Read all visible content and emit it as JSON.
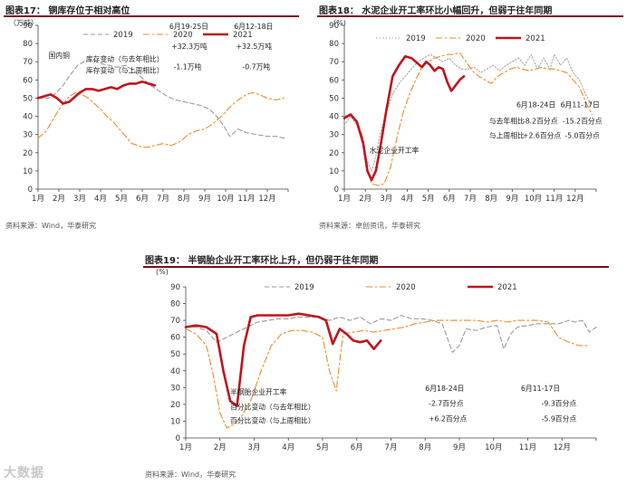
{
  "watermark": "大数据",
  "chart_data": [
    {
      "type": "line",
      "title": "图表17： 铜库存位于相对高位",
      "source": "资料来源：Wind，华泰研究",
      "ylabel": "（万吨）",
      "ylim": [
        0,
        90
      ],
      "yticks": [
        0,
        10,
        20,
        30,
        40,
        50,
        60,
        70,
        80,
        90
      ],
      "xlim": [
        1,
        13
      ],
      "xticks": [
        "1月",
        "2月",
        "3月",
        "4月",
        "5月",
        "6月",
        "7月",
        "8月",
        "9月",
        "10月",
        "11月",
        "12月"
      ],
      "legend": [
        "2019",
        "2020",
        "2021"
      ],
      "series": [
        {
          "name": "2019",
          "style": "dash",
          "color": "#9a9a9a",
          "x": [
            1.0,
            1.5,
            1.8,
            2.2,
            2.5,
            2.9,
            3.2,
            3.6,
            4.0,
            4.4,
            4.8,
            5.2,
            5.6,
            6.0,
            6.4,
            6.8,
            7.2,
            7.6,
            8.0,
            8.4,
            8.8,
            9.2,
            9.5,
            9.9,
            10.2,
            10.6,
            11.0,
            11.5,
            12.0,
            12.4,
            12.8
          ],
          "y": [
            50,
            50,
            52,
            57,
            62,
            68,
            70,
            71,
            69,
            68,
            67,
            68,
            65,
            61,
            57,
            54,
            51,
            49,
            48,
            47,
            46,
            44,
            41,
            35,
            29,
            33,
            31,
            30,
            29,
            29,
            28
          ]
        },
        {
          "name": "2020",
          "style": "dashdot",
          "color": "#f08a2a",
          "x": [
            1.0,
            1.4,
            1.8,
            2.2,
            2.5,
            2.8,
            3.1,
            3.4,
            3.7,
            4.0,
            4.3,
            4.6,
            4.9,
            5.2,
            5.5,
            5.8,
            6.0,
            6.3,
            6.6,
            7.0,
            7.4,
            7.8,
            8.2,
            8.6,
            9.0,
            9.4,
            9.8,
            10.2,
            10.6,
            11.0,
            11.3,
            11.6,
            12.0,
            12.4,
            12.8
          ],
          "y": [
            28,
            32,
            40,
            47,
            51,
            53,
            52,
            50,
            47,
            44,
            40,
            37,
            33,
            29,
            25,
            24,
            23,
            23,
            24,
            25,
            24,
            26,
            30,
            32,
            33,
            36,
            40,
            45,
            49,
            52,
            53,
            52,
            50,
            49,
            50
          ]
        },
        {
          "name": "2021",
          "style": "solid",
          "color": "#c0141c",
          "x": [
            1.0,
            1.3,
            1.6,
            1.9,
            2.2,
            2.5,
            2.8,
            3.0,
            3.3,
            3.6,
            3.9,
            4.2,
            4.5,
            4.8,
            5.1,
            5.4,
            5.7,
            6.0,
            6.3,
            6.6
          ],
          "y": [
            50,
            51,
            52,
            50,
            47,
            48,
            51,
            53,
            55,
            55,
            54,
            55,
            56,
            55,
            57,
            58,
            58,
            59,
            58,
            57
          ]
        }
      ],
      "annotations": [
        {
          "text": "国内铜",
          "x": 1.5,
          "y": 72
        },
        {
          "text": "库存变动（与去年相比）",
          "x": 3.3,
          "y": 70
        },
        {
          "text": "库存变动（与上周相比）",
          "x": 3.3,
          "y": 64
        },
        {
          "text": "6月19-25日",
          "x": 7.3,
          "y": 88
        },
        {
          "text": "+32.3万吨",
          "x": 7.4,
          "y": 77
        },
        {
          "text": "-1.1万吨",
          "x": 7.5,
          "y": 66
        },
        {
          "text": "6月12-18日",
          "x": 10.4,
          "y": 88
        },
        {
          "text": "+32.5万吨",
          "x": 10.5,
          "y": 77
        },
        {
          "text": "-0.7万吨",
          "x": 10.8,
          "y": 66
        }
      ]
    },
    {
      "type": "line",
      "title": "图表18： 水泥企业开工率环比小幅回升，但弱于往年同期",
      "source": "资料来源：卓创资讯，华泰研究",
      "ylabel": "(%)",
      "ylim": [
        0,
        90
      ],
      "yticks": [
        0,
        10,
        20,
        30,
        40,
        50,
        60,
        70,
        80,
        90
      ],
      "xlim": [
        1,
        13
      ],
      "xticks": [
        "1月",
        "2月",
        "3月",
        "4月",
        "5月",
        "6月",
        "7月",
        "8月",
        "9月",
        "10月",
        "11月",
        "12月"
      ],
      "legend": [
        "2019",
        "2020",
        "2021"
      ],
      "series": [
        {
          "name": "2019",
          "style": "dot",
          "color": "#a8a8a8",
          "x": [
            1.0,
            1.3,
            1.6,
            1.9,
            2.1,
            2.3,
            2.5,
            2.7,
            3.0,
            3.3,
            3.6,
            3.9,
            4.2,
            4.5,
            4.8,
            5.1,
            5.4,
            5.7,
            6.0,
            6.3,
            6.6,
            6.9,
            7.2,
            7.5,
            7.8,
            8.1,
            8.4,
            8.7,
            9.0,
            9.3,
            9.6,
            9.9,
            10.2,
            10.5,
            10.8,
            11.0,
            11.3,
            11.6,
            11.9,
            12.2,
            12.5,
            12.8
          ],
          "y": [
            35,
            40,
            35,
            25,
            15,
            10,
            18,
            30,
            42,
            52,
            58,
            62,
            66,
            70,
            72,
            74,
            72,
            70,
            72,
            68,
            66,
            66,
            67,
            64,
            66,
            68,
            65,
            68,
            70,
            72,
            68,
            74,
            66,
            72,
            66,
            74,
            68,
            72,
            64,
            60,
            52,
            46
          ]
        },
        {
          "name": "2020",
          "style": "dashdot",
          "color": "#f08a2a",
          "x": [
            1.0,
            1.3,
            1.6,
            1.9,
            2.1,
            2.3,
            2.6,
            2.9,
            3.2,
            3.5,
            3.8,
            4.1,
            4.4,
            4.7,
            5.0,
            5.3,
            5.6,
            5.9,
            6.2,
            6.5,
            6.8,
            7.1,
            7.4,
            7.7,
            8.0,
            8.3,
            8.6,
            8.9,
            9.2,
            9.5,
            9.8,
            10.1,
            10.4,
            10.7,
            11.0,
            11.3,
            11.6,
            11.9,
            12.2,
            12.5,
            12.8
          ],
          "y": [
            40,
            41,
            37,
            28,
            12,
            3,
            2,
            3,
            12,
            28,
            42,
            52,
            60,
            67,
            70,
            72,
            73,
            74,
            74,
            75,
            70,
            65,
            62,
            60,
            58,
            62,
            64,
            66,
            67,
            66,
            65,
            66,
            67,
            66,
            66,
            65,
            64,
            60,
            56,
            48,
            41
          ]
        },
        {
          "name": "2021",
          "style": "solid",
          "color": "#c0141c",
          "x": [
            1.0,
            1.3,
            1.6,
            1.9,
            2.1,
            2.3,
            2.5,
            2.7,
            3.0,
            3.3,
            3.6,
            3.9,
            4.2,
            4.5,
            4.7,
            4.9,
            5.1,
            5.3,
            5.5,
            5.7,
            5.9,
            6.1,
            6.3,
            6.5,
            6.7
          ],
          "y": [
            39,
            41,
            37,
            25,
            10,
            5,
            10,
            22,
            43,
            62,
            68,
            73,
            72,
            69,
            67,
            70,
            68,
            65,
            67,
            66,
            59,
            54,
            57,
            60,
            62
          ]
        }
      ],
      "annotations": [
        {
          "text": "水泥企业开工率",
          "x": 2.2,
          "y": 20
        },
        {
          "text": "与去年相比",
          "x": 7.9,
          "y": 36
        },
        {
          "text": "与上周相比",
          "x": 7.9,
          "y": 28
        },
        {
          "text": "6月18-24日",
          "x": 9.2,
          "y": 45
        },
        {
          "text": "-8.2百分点",
          "x": 9.5,
          "y": 36
        },
        {
          "text": "+2.6百分点",
          "x": 9.5,
          "y": 28
        },
        {
          "text": "6月11-17日",
          "x": 11.3,
          "y": 45
        },
        {
          "text": "-15.2百分点",
          "x": 11.4,
          "y": 36
        },
        {
          "text": "-5.0百分点",
          "x": 11.5,
          "y": 28
        }
      ]
    },
    {
      "type": "line",
      "title": "图表19： 半钢胎企业开工率环比上升，但仍弱于往年同期",
      "source": "资料来源：Wind，华泰研究",
      "ylabel": "(%)",
      "ylim": [
        0,
        90
      ],
      "yticks": [
        0,
        10,
        20,
        30,
        40,
        50,
        60,
        70,
        80,
        90
      ],
      "xlim": [
        1,
        13
      ],
      "xticks": [
        "1月",
        "2月",
        "3月",
        "4月",
        "5月",
        "6月",
        "7月",
        "8月",
        "9月",
        "10月",
        "11月",
        "12月"
      ],
      "legend": [
        "2019",
        "2020",
        "2021"
      ],
      "series": [
        {
          "name": "2019",
          "style": "dash",
          "color": "#9a9a9a",
          "x": [
            1.0,
            1.3,
            1.6,
            1.9,
            2.2,
            2.5,
            2.8,
            3.1,
            3.4,
            3.7,
            4.0,
            4.3,
            4.6,
            4.9,
            5.2,
            5.5,
            5.8,
            6.1,
            6.4,
            6.7,
            7.0,
            7.3,
            7.6,
            7.9,
            8.2,
            8.5,
            8.8,
            9.0,
            9.2,
            9.5,
            9.8,
            10.1,
            10.3,
            10.5,
            10.7,
            11.0,
            11.3,
            11.6,
            11.9,
            12.2,
            12.4,
            12.6,
            12.8,
            13.0
          ],
          "y": [
            66,
            66,
            64,
            57,
            60,
            63,
            66,
            69,
            70,
            71,
            71,
            72,
            72,
            72,
            70,
            72,
            70,
            72,
            68,
            71,
            70,
            73,
            71,
            71,
            70,
            68,
            51,
            55,
            65,
            64,
            66,
            67,
            53,
            62,
            66,
            67,
            68,
            68,
            68,
            70,
            69,
            70,
            63,
            66
          ]
        },
        {
          "name": "2020",
          "style": "dashdot",
          "color": "#f08a2a",
          "x": [
            1.0,
            1.3,
            1.6,
            1.8,
            2.0,
            2.2,
            2.4,
            2.6,
            2.9,
            3.2,
            3.5,
            3.8,
            4.1,
            4.4,
            4.7,
            5.0,
            5.2,
            5.4,
            5.6,
            5.9,
            6.2,
            6.5,
            6.8,
            7.1,
            7.4,
            7.7,
            8.0,
            8.3,
            8.6,
            8.9,
            9.2,
            9.5,
            9.8,
            10.1,
            10.4,
            10.7,
            11.0,
            11.3,
            11.6,
            11.9,
            12.2,
            12.5,
            12.8
          ],
          "y": [
            65,
            62,
            55,
            38,
            15,
            6,
            8,
            12,
            22,
            40,
            55,
            62,
            64,
            64,
            63,
            60,
            40,
            28,
            62,
            63,
            64,
            63,
            64,
            65,
            66,
            68,
            69,
            70,
            70,
            70,
            70,
            70,
            69,
            70,
            69,
            70,
            70,
            70,
            69,
            60,
            57,
            55,
            55
          ]
        },
        {
          "name": "2021",
          "style": "solid",
          "color": "#c0141c",
          "x": [
            1.0,
            1.3,
            1.6,
            1.9,
            2.1,
            2.3,
            2.5,
            2.7,
            2.9,
            3.1,
            3.4,
            3.7,
            4.0,
            4.3,
            4.6,
            4.9,
            5.1,
            5.3,
            5.5,
            5.7,
            5.9,
            6.1,
            6.3,
            6.5,
            6.7
          ],
          "y": [
            66,
            67,
            66,
            62,
            40,
            22,
            19,
            55,
            72,
            73,
            73,
            73,
            73,
            74,
            73,
            72,
            70,
            56,
            65,
            62,
            58,
            57,
            58,
            53,
            58
          ]
        }
      ],
      "annotations": [
        {
          "text": "半钢胎企业开工率",
          "x": 2.3,
          "y": 26
        },
        {
          "text": "百分比变动（与去年相比）",
          "x": 2.3,
          "y": 17
        },
        {
          "text": "百分比变动（与上周相比）",
          "x": 2.3,
          "y": 9
        },
        {
          "text": "6月18-24日",
          "x": 8.0,
          "y": 28
        },
        {
          "text": "-2.7百分点",
          "x": 8.1,
          "y": 19
        },
        {
          "text": "+6.2百分点",
          "x": 8.1,
          "y": 10
        },
        {
          "text": "6月11-17日",
          "x": 10.8,
          "y": 28
        },
        {
          "text": "-9.3百分点",
          "x": 11.4,
          "y": 19
        },
        {
          "text": "-5.9百分点",
          "x": 11.4,
          "y": 10
        }
      ]
    }
  ]
}
